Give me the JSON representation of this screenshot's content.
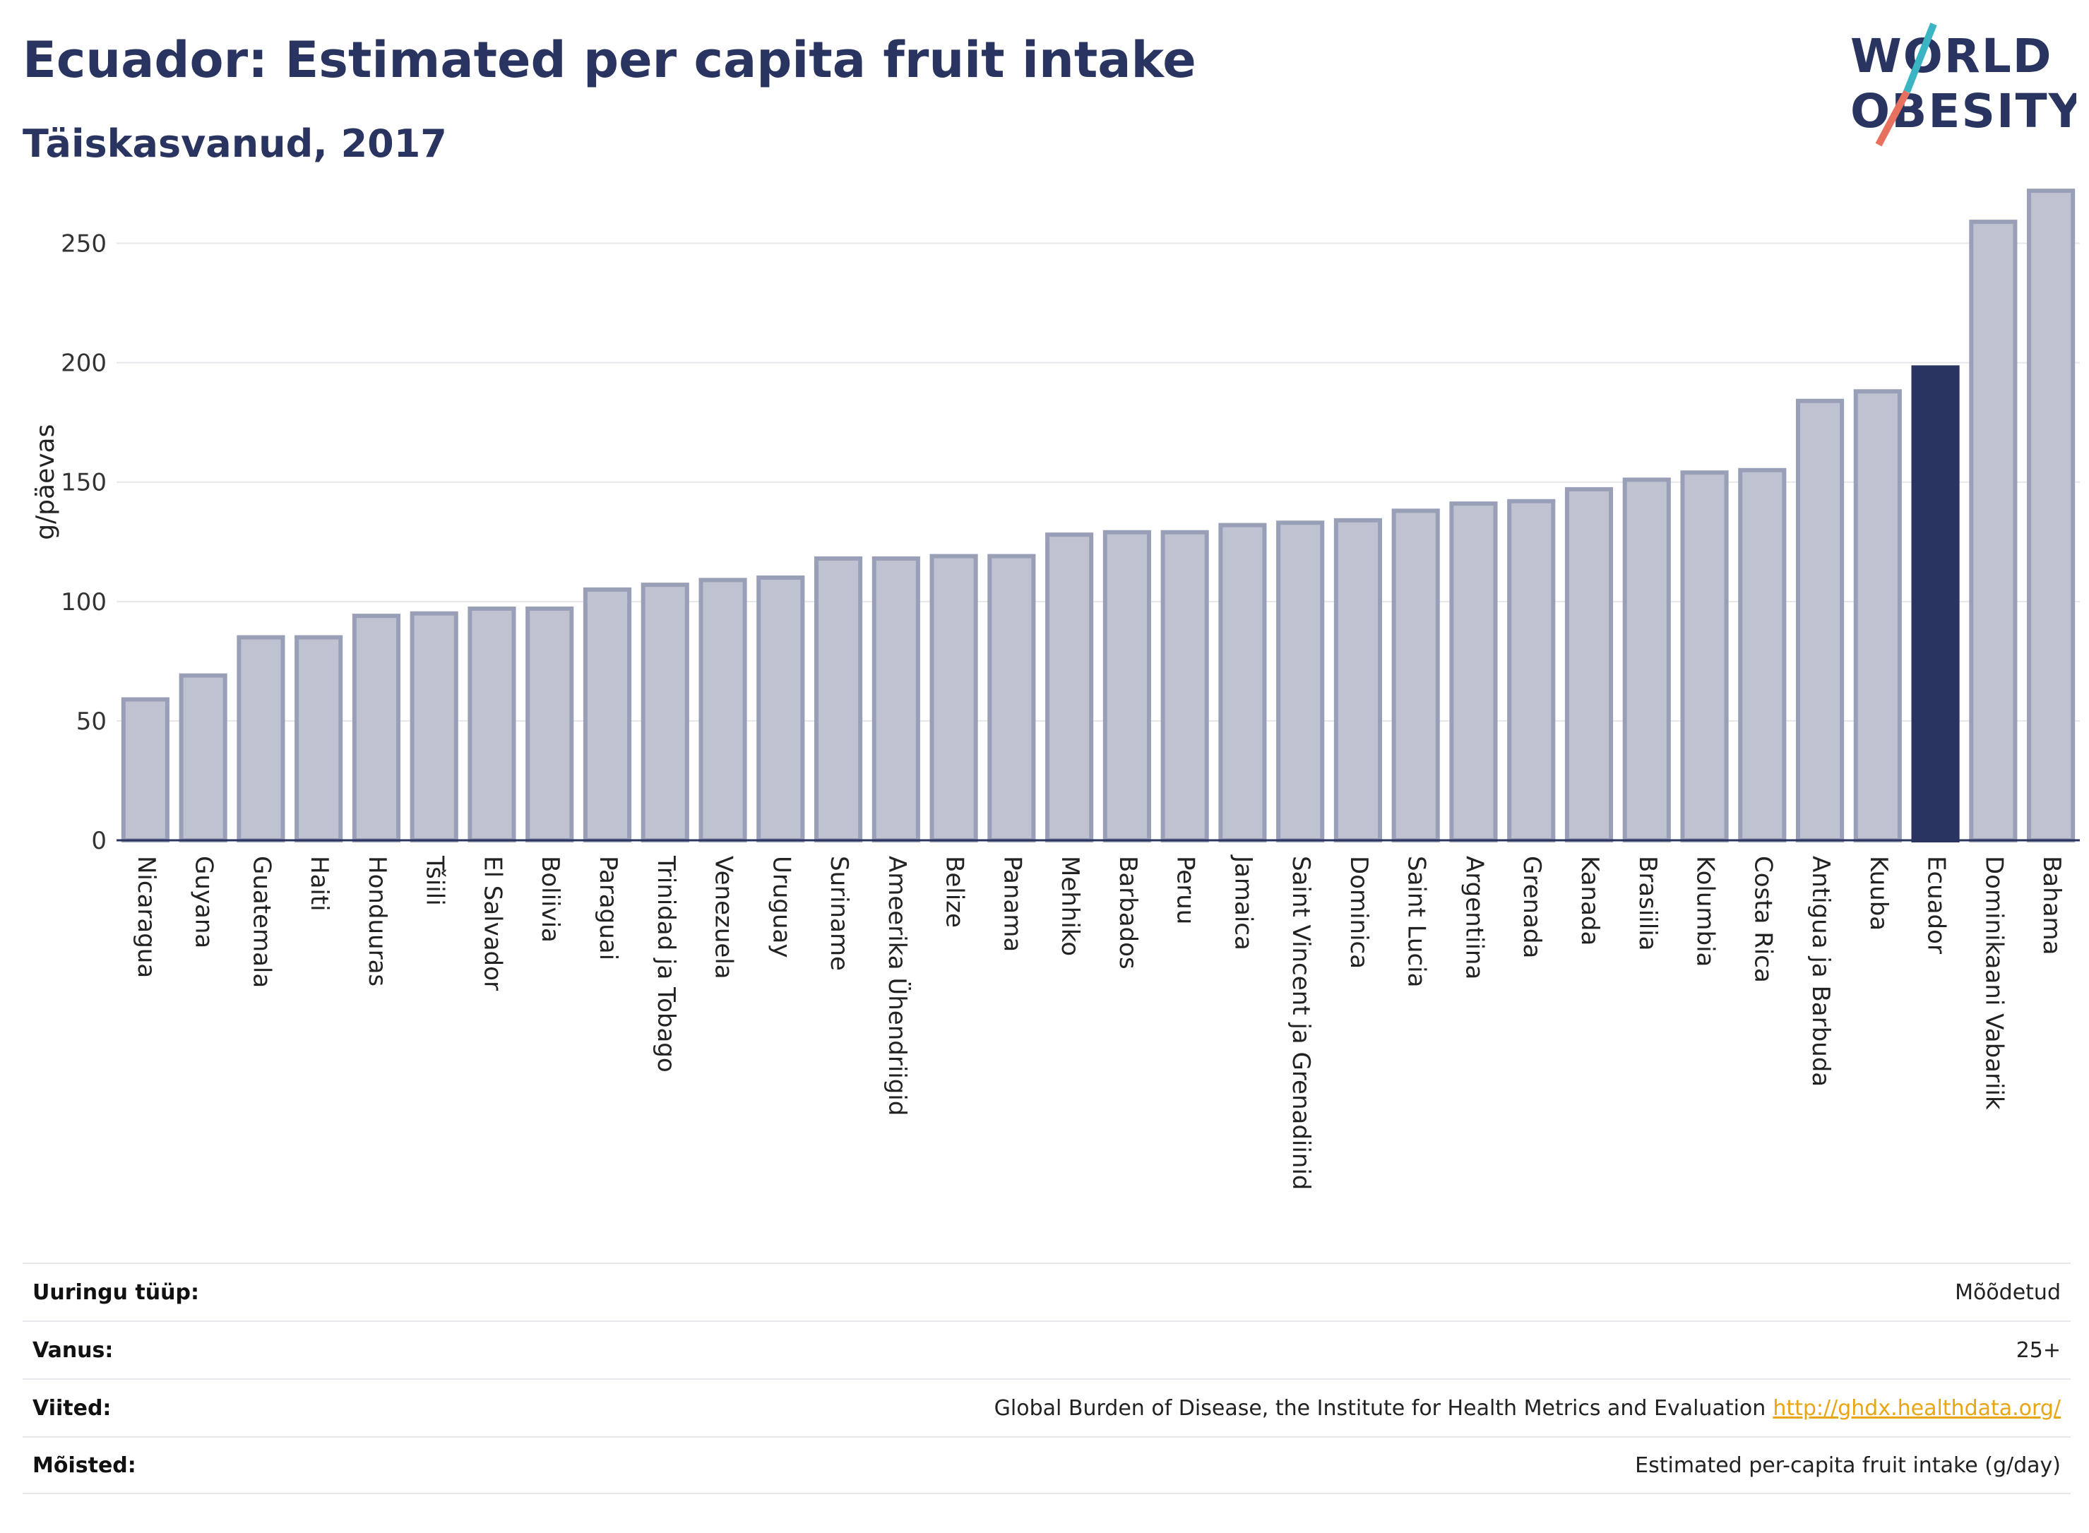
{
  "header": {
    "title": "Ecuador: Estimated per capita fruit intake",
    "subtitle": "Täiskasvanud, 2017"
  },
  "logo": {
    "line1": "WORLD",
    "line2": "OBESITY",
    "colors": {
      "text": "#2a3460",
      "slash_teal": "#3bb5c4",
      "slash_coral": "#e8705f"
    }
  },
  "colors": {
    "bar_default_fill": "#bfc2d0",
    "bar_default_stroke": "#9a9fb8",
    "bar_highlight": "#2a3460",
    "grid": "#e5e7eb",
    "axis": "#2a3460"
  },
  "chart_data": {
    "type": "bar",
    "title": "Ecuador: Estimated per capita fruit intake",
    "subtitle": "Täiskasvanud, 2017",
    "ylabel": "g/päevas",
    "xlabel": "",
    "ylim": [
      0,
      275
    ],
    "yticks": [
      0,
      50,
      100,
      150,
      200,
      250
    ],
    "grid": true,
    "highlight": "Ecuador",
    "categories": [
      "Nicaragua",
      "Guyana",
      "Guatemala",
      "Haiti",
      "Honduuras",
      "Tšiili",
      "El Salvador",
      "Boliivia",
      "Paraguai",
      "Trinidad ja Tobago",
      "Venezuela",
      "Uruguay",
      "Suriname",
      "Ameerika Ühendriigid",
      "Belize",
      "Panama",
      "Mehhiko",
      "Barbados",
      "Peruu",
      "Jamaica",
      "Saint Vincent ja Grenadiinid",
      "Dominica",
      "Saint Lucia",
      "Argentiina",
      "Grenada",
      "Kanada",
      "Brasiilia",
      "Kolumbia",
      "Costa Rica",
      "Antigua ja Barbuda",
      "Kuuba",
      "Ecuador",
      "Dominikaani Vabariik",
      "Bahama"
    ],
    "values": [
      59,
      69,
      85,
      85,
      94,
      95,
      97,
      97,
      105,
      107,
      109,
      110,
      118,
      118,
      119,
      119,
      128,
      129,
      129,
      132,
      133,
      134,
      138,
      141,
      142,
      147,
      151,
      154,
      155,
      184,
      188,
      198,
      259,
      272
    ]
  },
  "meta": {
    "rows": [
      {
        "key": "Uuringu tüüp:",
        "value": "Mõõdetud",
        "link": ""
      },
      {
        "key": "Vanus:",
        "value": "25+",
        "link": ""
      },
      {
        "key": "Viited:",
        "value": "Global Burden of Disease, the Institute for Health Metrics and Evaluation",
        "link": "http://ghdx.healthdata.org/"
      },
      {
        "key": "Mõisted:",
        "value": "Estimated per-capita fruit intake (g/day)",
        "link": ""
      }
    ]
  }
}
